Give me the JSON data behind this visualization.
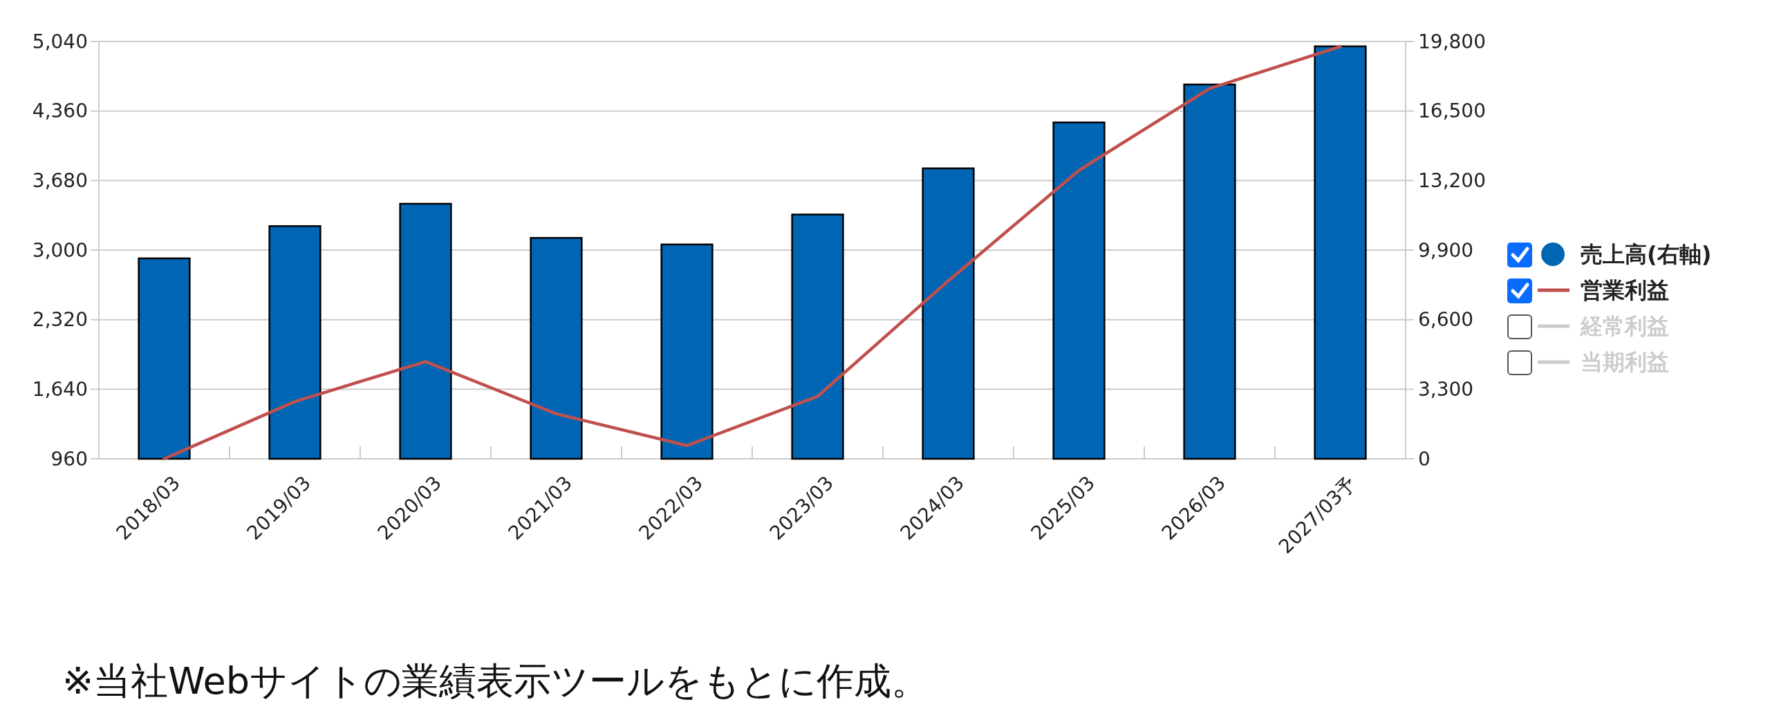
{
  "chart_data": {
    "type": "bar",
    "categories": [
      "2018/03",
      "2019/03",
      "2020/03",
      "2021/03",
      "2022/03",
      "2023/03",
      "2024/03",
      "2025/03",
      "2026/03",
      "2027/03予"
    ],
    "series": [
      {
        "name": "売上高(右軸)",
        "axis": "y2",
        "color": "#0066b3",
        "values": [
          9510,
          11040,
          12100,
          10480,
          10170,
          11590,
          13780,
          15960,
          17760,
          19570
        ]
      },
      {
        "name": "営業利益",
        "type": "line",
        "color": "#c0504d",
        "values": [
          960,
          1520,
          1910,
          1400,
          1090,
          1570,
          2700,
          3780,
          4580,
          4990
        ]
      },
      {
        "name": "経常利益",
        "type": "line",
        "color": "#cccccc",
        "values": [
          null,
          null,
          null,
          null,
          null,
          null,
          null,
          null,
          null,
          null
        ]
      },
      {
        "name": "当期利益",
        "type": "line",
        "color": "#cccccc",
        "values": [
          null,
          null,
          null,
          null,
          null,
          null,
          null,
          null,
          null,
          null
        ]
      }
    ],
    "ylim": [
      960,
      5040
    ],
    "yticks": [
      {
        "value": 960,
        "label": "960"
      },
      {
        "value": 1640,
        "label": "1,640"
      },
      {
        "value": 2320,
        "label": "2,320"
      },
      {
        "value": 3000,
        "label": "3,000"
      },
      {
        "value": 3680,
        "label": "3,680"
      },
      {
        "value": 4360,
        "label": "4,360"
      },
      {
        "value": 5040,
        "label": "5,040"
      }
    ],
    "y2lim": [
      0,
      19800
    ],
    "y2ticks": [
      0,
      {
        "value": 3300,
        "label": "3,300"
      },
      {
        "value": 6600,
        "label": "6,600"
      },
      {
        "value": 9900,
        "label": "9,900"
      },
      {
        "value": 13200,
        "label": "13,200"
      },
      {
        "value": 16500,
        "label": "16,500"
      },
      {
        "value": 19800,
        "label": "19,800"
      }
    ],
    "grid": "y",
    "legend": "right",
    "annotations": [
      "※当社Webサイトの業績表示ツールをもとに作成。"
    ]
  }
}
